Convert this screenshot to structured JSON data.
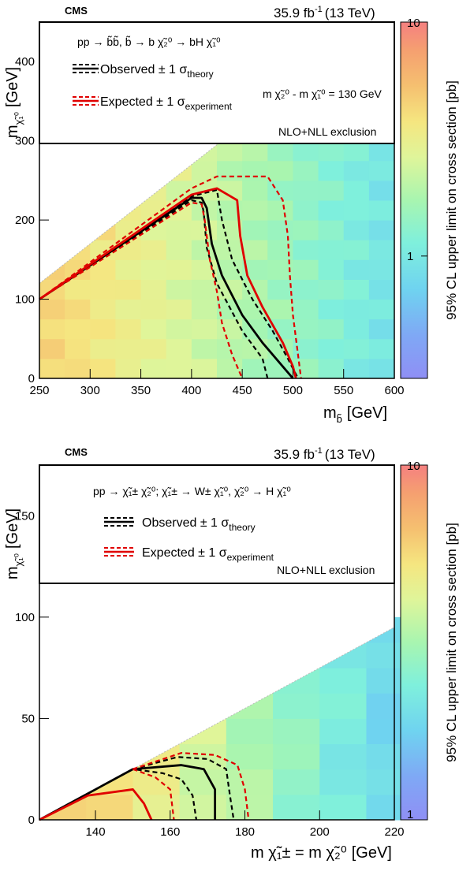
{
  "chart_data": [
    {
      "type": "heatmap",
      "experiment": "CMS",
      "lumi": "35.9 fb",
      "lumi_exp": "-1",
      "energy": "(13 TeV)",
      "process": "pp → b̃b̃, b̃ → b χ̃₂⁰ → bH χ̃₁⁰",
      "xlabel": "m",
      "xlabel_sub": "b̃",
      "xlabel_unit": "[GeV]",
      "ylabel": "m",
      "ylabel_sub": "χ̃₁⁰",
      "ylabel_unit": "[GeV]",
      "zlabel": "95% CL upper limit on cross section [pb]",
      "xlim": [
        250,
        600
      ],
      "ylim": [
        0,
        450
      ],
      "xticks": [
        250,
        300,
        350,
        400,
        450,
        500,
        550,
        600
      ],
      "yticks": [
        0,
        100,
        200,
        300,
        400
      ],
      "zscale": "log",
      "zlim": [
        0.3,
        10
      ],
      "zticks": [
        {
          "value": 1,
          "label": "1"
        },
        {
          "value": 10,
          "label": "10"
        }
      ],
      "legend": {
        "observed": "Observed ± 1 σ",
        "observed_sub": "theory",
        "expected": "Expected ± 1 σ",
        "expected_sub": "experiment",
        "note": "m χ̃₂⁰ - m χ̃₁⁰ = 130 GeV",
        "exclusion": "NLO+NLL exclusion"
      },
      "heatmap": {
        "x_bin_width": 25,
        "y_bin_width": 25,
        "diagonal_offset": 130,
        "note": "cells filled below diagonal m_LSP = m_sbottom - 130"
      },
      "series": [
        {
          "name": "Observed",
          "role": "observed_central",
          "x": [
            250,
            400,
            410,
            415,
            420,
            430,
            450,
            470,
            490,
            500
          ],
          "y": [
            100,
            228,
            228,
            215,
            170,
            130,
            80,
            45,
            15,
            0
          ]
        },
        {
          "name": "Observed −1σ",
          "role": "observed_band",
          "x": [
            250,
            400,
            410,
            412,
            415,
            425,
            450,
            470,
            475
          ],
          "y": [
            100,
            225,
            222,
            210,
            165,
            120,
            60,
            25,
            0
          ]
        },
        {
          "name": "Observed +1σ",
          "role": "observed_band",
          "x": [
            250,
            400,
            425,
            430,
            440,
            460,
            480,
            495,
            505
          ],
          "y": [
            100,
            230,
            238,
            200,
            150,
            100,
            60,
            25,
            0
          ]
        },
        {
          "name": "Expected",
          "role": "expected_central",
          "x": [
            250,
            400,
            425,
            445,
            448,
            455,
            470,
            490,
            500,
            503
          ],
          "y": [
            100,
            232,
            240,
            225,
            180,
            130,
            90,
            45,
            15,
            0
          ]
        },
        {
          "name": "Expected −1σ",
          "role": "expected_band",
          "x": [
            250,
            400,
            410,
            413,
            418,
            425,
            430,
            440,
            450
          ],
          "y": [
            100,
            222,
            220,
            200,
            150,
            110,
            70,
            30,
            0
          ]
        },
        {
          "name": "Expected +1σ",
          "role": "expected_band",
          "x": [
            250,
            400,
            425,
            475,
            490,
            495,
            497,
            500,
            505,
            508
          ],
          "y": [
            100,
            240,
            255,
            255,
            225,
            180,
            130,
            80,
            30,
            0
          ]
        }
      ]
    },
    {
      "type": "heatmap",
      "experiment": "CMS",
      "lumi": "35.9 fb",
      "lumi_exp": "-1",
      "energy": "(13 TeV)",
      "process": "pp → χ̃₁± χ̃₂⁰;   χ̃₁± → W± χ̃₁⁰,  χ̃₂⁰ → H χ̃₁⁰",
      "xlabel": "m χ̃₁± = m χ̃₂⁰",
      "xlabel_unit": "[GeV]",
      "ylabel": "m",
      "ylabel_sub": "χ̃₁⁰",
      "ylabel_unit": "[GeV]",
      "zlabel": "95% CL upper limit on cross section [pb]",
      "xlim": [
        125,
        220
      ],
      "ylim": [
        0,
        175
      ],
      "xticks": [
        140,
        160,
        180,
        200,
        220
      ],
      "yticks": [
        0,
        50,
        100,
        150
      ],
      "zscale": "log",
      "zlim": [
        1,
        10
      ],
      "zticks": [
        {
          "value": 1,
          "label": "1"
        },
        {
          "value": 10,
          "label": "10"
        }
      ],
      "legend": {
        "observed": "Observed ± 1 σ",
        "observed_sub": "theory",
        "expected": "Expected ± 1 σ",
        "expected_sub": "experiment",
        "exclusion": "NLO+NLL exclusion"
      },
      "heatmap": {
        "x_bin_width": 12.5,
        "y_bin_width": 12.5,
        "diagonal_offset": 125,
        "note": "cells filled below diagonal m_LSP = m_chargino - 125"
      },
      "series": [
        {
          "name": "Observed",
          "role": "observed_central",
          "x": [
            125,
            150,
            163,
            169,
            172,
            172
          ],
          "y": [
            0,
            25,
            27,
            25,
            15,
            0
          ]
        },
        {
          "name": "Observed −1σ",
          "role": "observed_band",
          "x": [
            125,
            150,
            158,
            163,
            166,
            167
          ],
          "y": [
            0,
            25,
            23,
            20,
            12,
            0
          ]
        },
        {
          "name": "Observed +1σ",
          "role": "observed_band",
          "x": [
            150,
            162,
            170,
            175,
            176,
            177
          ],
          "y": [
            25,
            31,
            30,
            25,
            12,
            0
          ]
        },
        {
          "name": "Expected",
          "role": "expected_central",
          "x": [
            125,
            138,
            150,
            153,
            155
          ],
          "y": [
            0,
            12,
            15,
            8,
            0
          ]
        },
        {
          "name": "Expected −1σ",
          "role": "expected_band",
          "x": [
            150,
            156,
            160,
            161
          ],
          "y": [
            25,
            21,
            15,
            0
          ]
        },
        {
          "name": "Expected +1σ",
          "role": "expected_band",
          "x": [
            150,
            163,
            172,
            178,
            180,
            181
          ],
          "y": [
            25,
            33,
            32,
            27,
            15,
            0
          ]
        }
      ]
    }
  ]
}
